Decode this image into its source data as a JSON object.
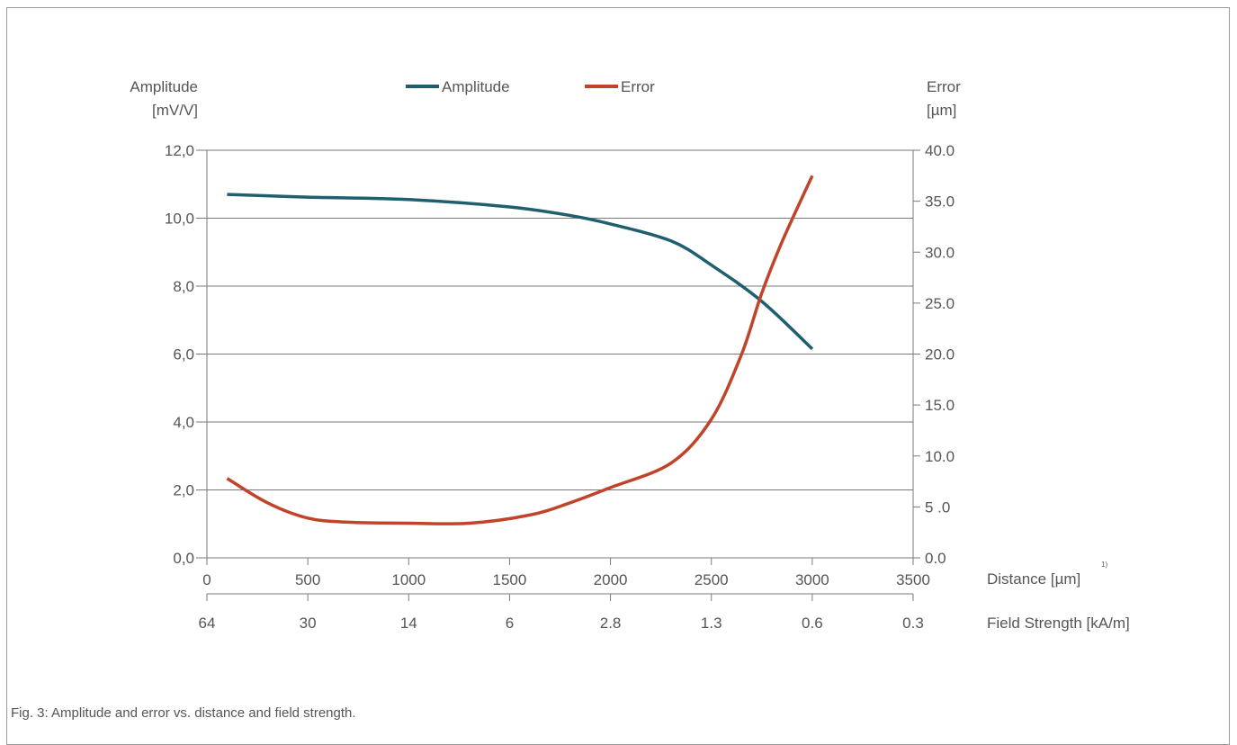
{
  "caption": "Fig. 3: Amplitude and error vs. distance and field strength.",
  "chart_data": {
    "type": "line",
    "title": "",
    "legend": {
      "placement": "top-center",
      "entries": [
        "Amplitude",
        "Error"
      ]
    },
    "left_axis": {
      "label_line1": "Amplitude",
      "label_line2": "[mV/V]",
      "ylim": [
        0,
        12
      ],
      "ticks": [
        "0,0",
        "2,0",
        "4,0",
        "6,0",
        "8,0",
        "10,0",
        "12,0"
      ]
    },
    "right_axis": {
      "label_line1": "Error",
      "label_line2": "[µm]",
      "ylim": [
        0,
        40
      ],
      "ticks": [
        "0.0",
        "5 .0",
        "10.0",
        "15.0",
        "20.0",
        "25.0",
        "30.0",
        "35.0",
        "40.0"
      ]
    },
    "x_axis": {
      "label": "Distance [µm]",
      "footnote": "1)",
      "xlim": [
        0,
        3500
      ],
      "ticks": [
        "0",
        "500",
        "1000",
        "1500",
        "2000",
        "2500",
        "3000",
        "3500"
      ]
    },
    "x2_axis": {
      "label": "Field Strength [kA/m]",
      "ticks": [
        "64",
        "30",
        "14",
        "6",
        "2.8",
        "1.3",
        "0.6",
        "0.3"
      ]
    },
    "grid": true,
    "series": [
      {
        "name": "Amplitude",
        "axis": "left",
        "color": "#1f5f6e",
        "x": [
          100,
          500,
          1000,
          1500,
          1800,
          2000,
          2300,
          2500,
          2750,
          3000
        ],
        "y": [
          10.7,
          10.62,
          10.55,
          10.33,
          10.08,
          9.83,
          9.33,
          8.62,
          7.55,
          6.15
        ]
      },
      {
        "name": "Error",
        "axis": "right",
        "color": "#c0442a",
        "x": [
          100,
          300,
          500,
          700,
          1000,
          1300,
          1600,
          1800,
          2000,
          2300,
          2500,
          2650,
          2750,
          2850,
          3000
        ],
        "y": [
          7.8,
          5.4,
          3.9,
          3.5,
          3.4,
          3.4,
          4.2,
          5.4,
          6.9,
          9.3,
          13.6,
          20.0,
          26.0,
          31.0,
          37.5
        ]
      }
    ]
  }
}
